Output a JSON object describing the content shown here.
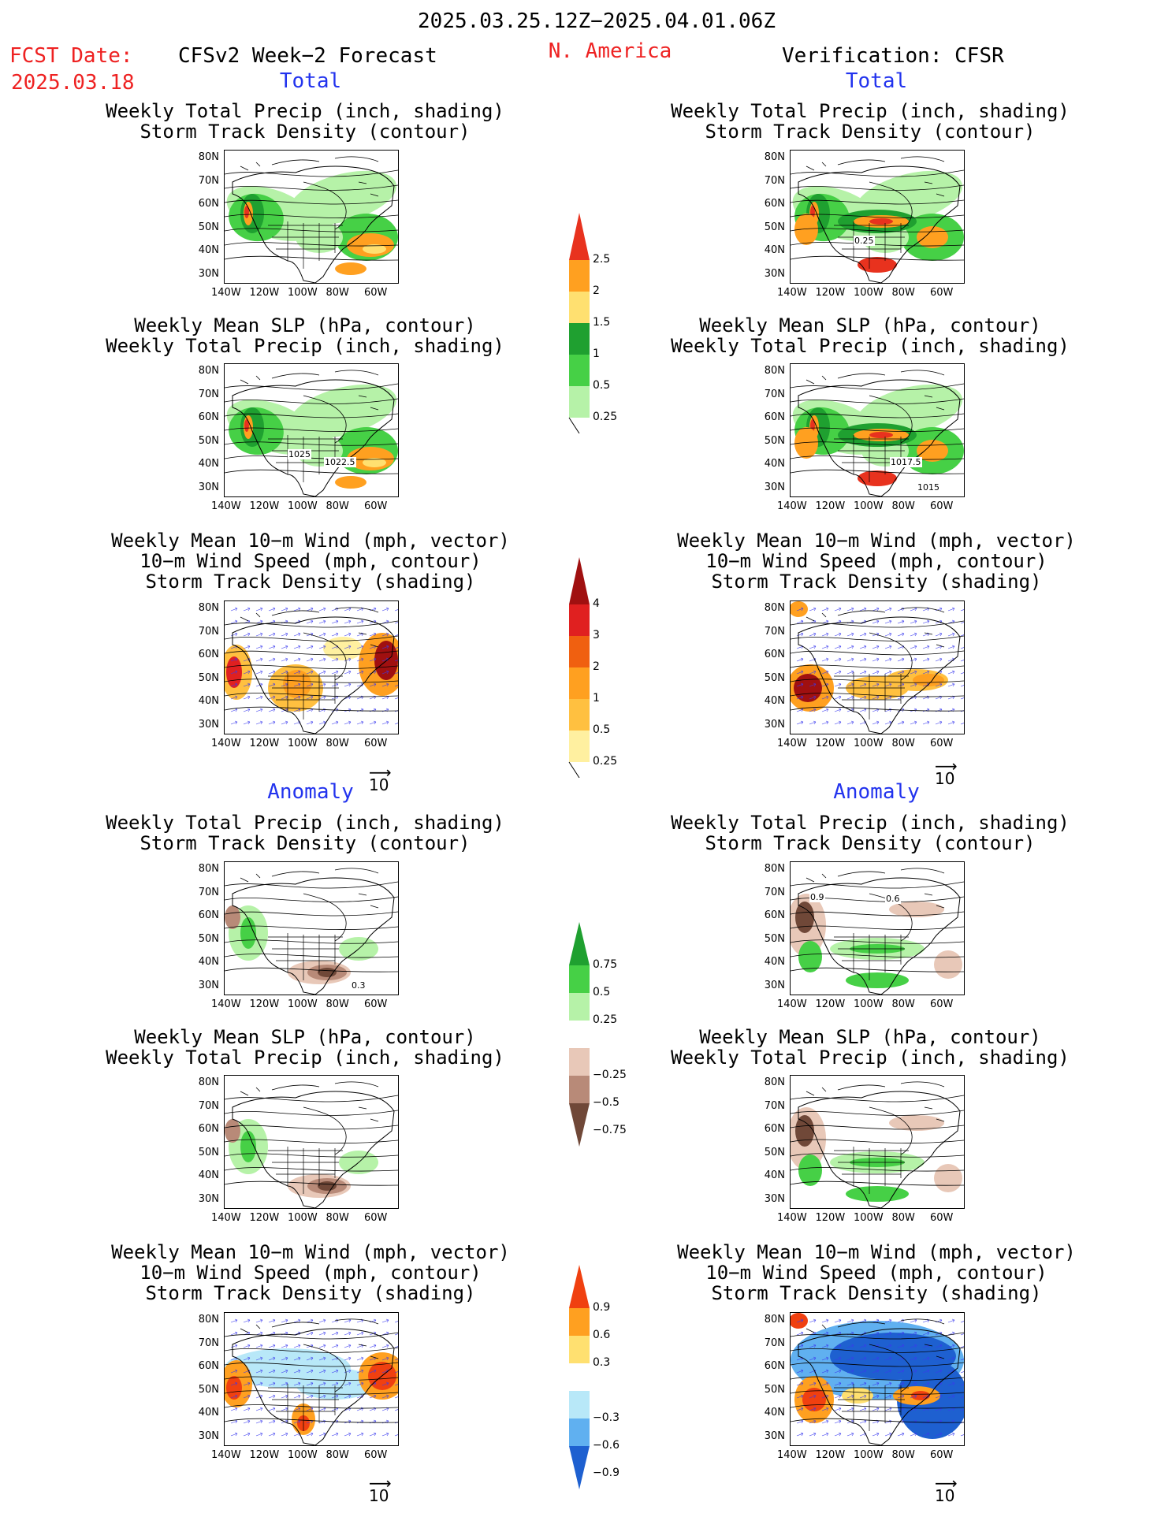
{
  "header": {
    "period": "2025.03.25.12Z−2025.04.01.06Z",
    "fcst_label": "FCST Date:",
    "fcst_date": "2025.03.18",
    "forecast_title": "CFSv2 Week−2 Forecast",
    "region": "N. America",
    "verification": "Verification: CFSR"
  },
  "sections": {
    "total": "Total",
    "anomaly": "Anomaly"
  },
  "titles": {
    "precip_storm": [
      "Weekly Total Precip (inch, shading)",
      "Storm Track Density (contour)"
    ],
    "slp_precip": [
      "Weekly Mean SLP (hPa, contour)",
      "Weekly Total Precip (inch, shading)"
    ],
    "wind_storm": [
      "Weekly Mean 10−m Wind (mph, vector)",
      "10−m Wind Speed (mph, contour)",
      "Storm Track Density (shading)"
    ]
  },
  "axes": {
    "lat_ticks": [
      "80N",
      "70N",
      "60N",
      "50N",
      "40N",
      "30N"
    ],
    "lon_ticks": [
      "140W",
      "120W",
      "100W",
      "80W",
      "60W"
    ]
  },
  "vector_ref": "10",
  "colorbars": {
    "total_precip": {
      "labels": [
        "2.5",
        "2",
        "1.5",
        "1",
        "0.5",
        "0.25"
      ],
      "colors": [
        "#e8321e",
        "#ffa020",
        "#ffe070",
        "#1fa030",
        "#46d046",
        "#b6f2a8"
      ]
    },
    "total_storm": {
      "labels": [
        "4",
        "3",
        "2",
        "1",
        "0.5",
        "0.25"
      ],
      "colors": [
        "#a01010",
        "#e02020",
        "#f06010",
        "#ffa020",
        "#ffc040",
        "#fff0a0"
      ]
    },
    "anom_precip": {
      "labels": [
        "0.75",
        "0.5",
        "0.25",
        "−0.25",
        "−0.5",
        "−0.75"
      ],
      "colors": [
        "#1fa030",
        "#46d046",
        "#b6f2a8",
        "#ffffff",
        "#e8c8b8",
        "#b88a78",
        "#704838"
      ]
    },
    "anom_storm": {
      "labels": [
        "0.9",
        "0.6",
        "0.3",
        "−0.3",
        "−0.6",
        "−0.9"
      ],
      "colors": [
        "#f04010",
        "#ffa020",
        "#ffe070",
        "#ffffff",
        "#b8e8f8",
        "#60b0f0",
        "#1e60d0"
      ]
    }
  },
  "map_annotations": {
    "fc_slp_total": [
      "1025",
      "1022.5"
    ],
    "ver_precip_total": [
      "0.25"
    ],
    "ver_slp_total": [
      "1017.5",
      "1015"
    ],
    "fc_precip_anom": [
      "0.3"
    ],
    "ver_precip_anom": [
      "0.6",
      "0.9"
    ]
  }
}
